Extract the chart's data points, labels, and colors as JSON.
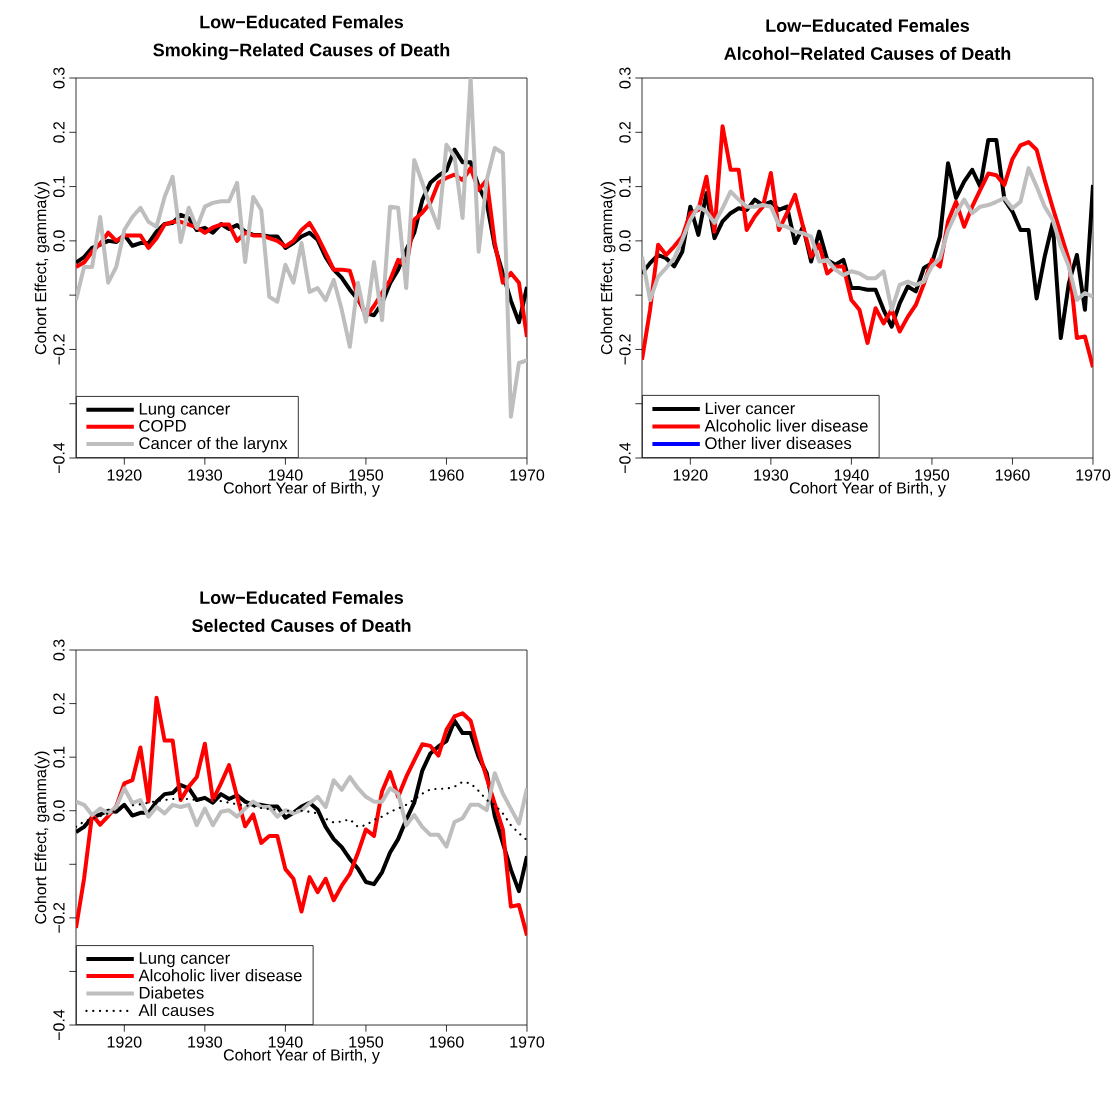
{
  "chart_data": [
    {
      "type": "line",
      "title": "Low−Educated Females",
      "subtitle": "Smoking−Related Causes of Death",
      "xlabel": "Cohort Year of Birth, y",
      "ylabel": "Cohort Effect, gamma(y)",
      "x": [
        1914,
        1915,
        1916,
        1917,
        1918,
        1919,
        1920,
        1921,
        1922,
        1923,
        1924,
        1925,
        1926,
        1927,
        1928,
        1929,
        1930,
        1931,
        1932,
        1933,
        1934,
        1935,
        1936,
        1937,
        1938,
        1939,
        1940,
        1941,
        1942,
        1943,
        1944,
        1945,
        1946,
        1947,
        1948,
        1949,
        1950,
        1951,
        1952,
        1953,
        1954,
        1955,
        1956,
        1957,
        1958,
        1959,
        1960,
        1961,
        1962,
        1963,
        1964,
        1965,
        1966,
        1967,
        1968,
        1969,
        1970
      ],
      "xlim": [
        1914,
        1970
      ],
      "xticks": [
        1920,
        1930,
        1940,
        1950,
        1960,
        1970
      ],
      "ylim": [
        -0.4,
        0.3
      ],
      "yticks": [
        {
          "value": -0.4,
          "label": "−0.4"
        },
        {
          "value": -0.3,
          "label": null
        },
        {
          "value": -0.2,
          "label": "−0.2"
        },
        {
          "value": -0.1,
          "label": null
        },
        {
          "value": 0,
          "label": "0.0"
        },
        0.1,
        0.2,
        0.3
      ],
      "legend": "bottom left",
      "series": [
        {
          "name": "Lung cancer",
          "color": "#000000",
          "values": [
            -0.04,
            -0.03,
            -0.013,
            -0.007,
            0.0,
            -0.002,
            0.011,
            -0.009,
            -0.004,
            -0.004,
            0.017,
            0.031,
            0.033,
            0.048,
            0.042,
            0.02,
            0.024,
            0.015,
            0.031,
            0.022,
            0.029,
            0.017,
            0.011,
            0.011,
            0.008,
            0.008,
            -0.013,
            -0.004,
            0.008,
            0.015,
            0.002,
            -0.03,
            -0.053,
            -0.068,
            -0.09,
            -0.108,
            -0.133,
            -0.137,
            -0.115,
            -0.078,
            -0.053,
            -0.017,
            0.015,
            0.075,
            0.107,
            0.12,
            0.13,
            0.168,
            0.145,
            0.145,
            0.1,
            0.07,
            -0.01,
            -0.06,
            -0.11,
            -0.15,
            -0.085
          ]
        },
        {
          "name": "COPD",
          "color": "#ff0000",
          "values": [
            -0.048,
            -0.04,
            -0.02,
            -0.005,
            0.015,
            0.0,
            0.01,
            0.01,
            0.01,
            -0.013,
            0.005,
            0.03,
            0.035,
            0.035,
            0.03,
            0.025,
            0.015,
            0.025,
            0.03,
            0.03,
            0.0,
            0.015,
            0.01,
            0.01,
            0.005,
            0.0,
            -0.01,
            0.0,
            0.02,
            0.033,
            0.008,
            -0.022,
            -0.053,
            -0.053,
            -0.055,
            -0.103,
            -0.14,
            -0.12,
            -0.096,
            -0.072,
            -0.035,
            -0.048,
            0.039,
            0.052,
            0.07,
            0.107,
            0.116,
            0.122,
            0.112,
            0.134,
            0.094,
            0.112,
            -0.004,
            -0.077,
            -0.059,
            -0.077,
            -0.177
          ]
        },
        {
          "name": "Cancer of the larynx",
          "color": "#bebebe",
          "values": [
            -0.109,
            -0.048,
            -0.048,
            0.044,
            -0.077,
            -0.048,
            0.02,
            0.044,
            0.061,
            0.035,
            0.026,
            0.081,
            0.118,
            -0.002,
            0.061,
            0.024,
            0.063,
            0.07,
            0.073,
            0.073,
            0.107,
            -0.039,
            0.081,
            0.057,
            -0.103,
            -0.112,
            -0.044,
            -0.077,
            -0.004,
            -0.094,
            -0.087,
            -0.109,
            -0.072,
            -0.127,
            -0.195,
            -0.077,
            -0.149,
            -0.039,
            -0.146,
            0.063,
            0.061,
            -0.087,
            0.149,
            0.107,
            0.063,
            0.024,
            0.177,
            0.155,
            0.042,
            0.3,
            -0.02,
            0.112,
            0.171,
            0.162,
            -0.324,
            -0.225,
            -0.22
          ]
        }
      ]
    },
    {
      "type": "line",
      "title": "Low−Educated Females",
      "subtitle": "Alcohol−Related Causes of Death",
      "xlabel": "Cohort Year of Birth, y",
      "ylabel": "Cohort Effect, gamma(y)",
      "x": [
        1914,
        1915,
        1916,
        1917,
        1918,
        1919,
        1920,
        1921,
        1922,
        1923,
        1924,
        1925,
        1926,
        1927,
        1928,
        1929,
        1930,
        1931,
        1932,
        1933,
        1934,
        1935,
        1936,
        1937,
        1938,
        1939,
        1940,
        1941,
        1942,
        1943,
        1944,
        1945,
        1946,
        1947,
        1948,
        1949,
        1950,
        1951,
        1952,
        1953,
        1954,
        1955,
        1956,
        1957,
        1958,
        1959,
        1960,
        1961,
        1962,
        1963,
        1964,
        1965,
        1966,
        1967,
        1968,
        1969,
        1970
      ],
      "xlim": [
        1914,
        1970
      ],
      "xticks": [
        1920,
        1930,
        1940,
        1950,
        1960,
        1970
      ],
      "ylim": [
        -0.4,
        0.3
      ],
      "yticks": [
        {
          "value": -0.4,
          "label": "−0.4"
        },
        {
          "value": -0.3,
          "label": null
        },
        {
          "value": -0.2,
          "label": "−0.2"
        },
        {
          "value": -0.1,
          "label": null
        },
        {
          "value": 0,
          "label": "0.0"
        },
        0.1,
        0.2,
        0.3
      ],
      "legend": "bottom left",
      "series": [
        {
          "name": "Liver cancer",
          "color": "#000000",
          "values": [
            -0.06,
            -0.041,
            -0.026,
            -0.032,
            -0.047,
            -0.02,
            0.063,
            0.011,
            0.088,
            0.005,
            0.036,
            0.051,
            0.06,
            0.057,
            0.076,
            0.066,
            0.072,
            0.057,
            0.063,
            -0.004,
            0.026,
            -0.038,
            0.017,
            -0.035,
            -0.044,
            -0.035,
            -0.087,
            -0.087,
            -0.09,
            -0.09,
            -0.127,
            -0.158,
            -0.115,
            -0.084,
            -0.093,
            -0.05,
            -0.041,
            0.008,
            0.143,
            0.079,
            0.109,
            0.131,
            0.1,
            0.186,
            0.186,
            0.076,
            0.054,
            0.02,
            0.02,
            -0.106,
            -0.029,
            0.033,
            -0.179,
            -0.078,
            -0.026,
            -0.127,
            0.103
          ]
        },
        {
          "name": "Alcoholic liver disease",
          "color": "#ff0000",
          "values": [
            -0.219,
            -0.127,
            -0.007,
            -0.026,
            -0.01,
            0.008,
            0.051,
            0.057,
            0.118,
            0.017,
            0.211,
            0.131,
            0.131,
            0.02,
            0.045,
            0.063,
            0.125,
            0.02,
            0.051,
            0.085,
            0.026,
            -0.029,
            -0.007,
            -0.06,
            -0.047,
            -0.047,
            -0.109,
            -0.127,
            -0.188,
            -0.124,
            -0.152,
            -0.127,
            -0.167,
            -0.14,
            -0.118,
            -0.079,
            -0.035,
            -0.047,
            0.036,
            0.072,
            0.026,
            0.063,
            0.094,
            0.124,
            0.121,
            0.103,
            0.151,
            0.176,
            0.182,
            0.168,
            0.112,
            0.061,
            0.013,
            -0.035,
            -0.179,
            -0.176,
            -0.233
          ]
        },
        {
          "color": "#bebebe",
          "values": [
            -0.029,
            -0.109,
            -0.066,
            -0.05,
            -0.032,
            0.002,
            0.039,
            0.063,
            0.054,
            0.033,
            0.06,
            0.091,
            0.076,
            0.063,
            0.063,
            0.066,
            0.063,
            0.029,
            0.026,
            0.017,
            0.014,
            0.008,
            -0.038,
            -0.035,
            -0.053,
            -0.063,
            -0.056,
            -0.06,
            -0.069,
            -0.069,
            -0.056,
            -0.127,
            -0.081,
            -0.075,
            -0.081,
            -0.075,
            -0.047,
            -0.032,
            0.02,
            0.051,
            0.076,
            0.051,
            0.063,
            0.066,
            0.072,
            0.079,
            0.06,
            0.072,
            0.134,
            0.1,
            0.063,
            0.039,
            -0.01,
            -0.047,
            -0.109,
            -0.096,
            -0.103
          ]
        },
        {
          "name": "Other liver diseases",
          "color": "#0000ff",
          "values": [
            null,
            null,
            null,
            null,
            null,
            null,
            null,
            null,
            null,
            null,
            null,
            null,
            null,
            null,
            null,
            null,
            null,
            null,
            null,
            null,
            null,
            null,
            null,
            null,
            null,
            null,
            null,
            null,
            null,
            null,
            null,
            null,
            null,
            null,
            null,
            null,
            null,
            null,
            null,
            null,
            null,
            null,
            null,
            null,
            null,
            null,
            null,
            null,
            null,
            null,
            null,
            null,
            null,
            null,
            null,
            null,
            null
          ]
        }
      ]
    },
    {
      "type": "line",
      "title": "Low−Educated Females",
      "subtitle": "Selected Causes of Death",
      "xlabel": "Cohort Year of Birth, y",
      "ylabel": "Cohort Effect, gamma(y)",
      "x": [
        1914,
        1915,
        1916,
        1917,
        1918,
        1919,
        1920,
        1921,
        1922,
        1923,
        1924,
        1925,
        1926,
        1927,
        1928,
        1929,
        1930,
        1931,
        1932,
        1933,
        1934,
        1935,
        1936,
        1937,
        1938,
        1939,
        1940,
        1941,
        1942,
        1943,
        1944,
        1945,
        1946,
        1947,
        1948,
        1949,
        1950,
        1951,
        1952,
        1953,
        1954,
        1955,
        1956,
        1957,
        1958,
        1959,
        1960,
        1961,
        1962,
        1963,
        1964,
        1965,
        1966,
        1967,
        1968,
        1969,
        1970
      ],
      "xlim": [
        1914,
        1970
      ],
      "xticks": [
        1920,
        1930,
        1940,
        1950,
        1960,
        1970
      ],
      "ylim": [
        -0.4,
        0.3
      ],
      "yticks": [
        {
          "value": -0.4,
          "label": "−0.4"
        },
        {
          "value": -0.3,
          "label": null
        },
        {
          "value": -0.2,
          "label": "−0.2"
        },
        {
          "value": -0.1,
          "label": null
        },
        {
          "value": 0,
          "label": "0.0"
        },
        0.1,
        0.2,
        0.3
      ],
      "legend": "bottom left",
      "series": [
        {
          "name": "Lung cancer",
          "color": "#000000",
          "values": [
            -0.04,
            -0.03,
            -0.013,
            -0.007,
            0.0,
            -0.002,
            0.011,
            -0.009,
            -0.004,
            -0.004,
            0.017,
            0.031,
            0.033,
            0.048,
            0.042,
            0.02,
            0.024,
            0.015,
            0.031,
            0.022,
            0.029,
            0.017,
            0.011,
            0.011,
            0.008,
            0.008,
            -0.013,
            -0.004,
            0.008,
            0.015,
            0.002,
            -0.03,
            -0.053,
            -0.068,
            -0.09,
            -0.108,
            -0.133,
            -0.137,
            -0.115,
            -0.078,
            -0.053,
            -0.017,
            0.015,
            0.075,
            0.107,
            0.12,
            0.13,
            0.168,
            0.145,
            0.145,
            0.1,
            0.07,
            -0.01,
            -0.06,
            -0.11,
            -0.15,
            -0.085
          ]
        },
        {
          "name": "Alcoholic liver disease",
          "color": "#ff0000",
          "values": [
            -0.219,
            -0.127,
            -0.007,
            -0.026,
            -0.01,
            0.008,
            0.051,
            0.057,
            0.118,
            0.017,
            0.211,
            0.131,
            0.131,
            0.02,
            0.045,
            0.063,
            0.125,
            0.02,
            0.051,
            0.085,
            0.026,
            -0.029,
            -0.007,
            -0.06,
            -0.047,
            -0.047,
            -0.109,
            -0.127,
            -0.188,
            -0.124,
            -0.152,
            -0.127,
            -0.167,
            -0.14,
            -0.118,
            -0.079,
            -0.035,
            -0.047,
            0.036,
            0.072,
            0.026,
            0.063,
            0.094,
            0.124,
            0.121,
            0.103,
            0.151,
            0.176,
            0.182,
            0.168,
            0.112,
            0.061,
            0.013,
            -0.035,
            -0.179,
            -0.176,
            -0.233
          ]
        },
        {
          "name": "Diabetes",
          "color": "#bebebe",
          "values": [
            0.017,
            0.011,
            -0.008,
            0.004,
            -0.005,
            0.007,
            0.042,
            0.014,
            0.02,
            -0.011,
            0.007,
            -0.005,
            0.011,
            0.007,
            0.011,
            -0.027,
            0.004,
            -0.027,
            -0.002,
            0.001,
            -0.011,
            0.004,
            0.017,
            0.007,
            0.007,
            -0.011,
            0.001,
            -0.005,
            0.001,
            0.014,
            0.026,
            0.007,
            0.057,
            0.039,
            0.063,
            0.042,
            0.026,
            0.017,
            0.017,
            0.042,
            0.032,
            -0.027,
            -0.008,
            -0.03,
            -0.045,
            -0.045,
            -0.067,
            -0.021,
            -0.014,
            0.011,
            0.011,
            0.001,
            0.07,
            0.032,
            0.004,
            -0.024,
            0.042
          ]
        },
        {
          "name": "All causes",
          "color": "#000000",
          "line_style": "dotted",
          "values": [
            -0.03,
            -0.02,
            -0.015,
            -0.01,
            -0.005,
            0.0,
            0.005,
            0.01,
            0.012,
            0.015,
            0.018,
            0.02,
            0.022,
            0.022,
            0.022,
            0.02,
            0.02,
            0.02,
            0.018,
            0.015,
            0.012,
            0.01,
            0.008,
            0.005,
            0.003,
            0.002,
            0.0,
            0.0,
            0.0,
            -0.002,
            -0.005,
            -0.015,
            -0.022,
            -0.02,
            -0.016,
            -0.03,
            -0.027,
            -0.017,
            -0.011,
            -0.002,
            0.004,
            0.011,
            0.021,
            0.032,
            0.04,
            0.041,
            0.041,
            0.045,
            0.054,
            0.051,
            0.037,
            0.02,
            0.011,
            -0.005,
            -0.027,
            -0.042,
            -0.055
          ]
        }
      ]
    }
  ]
}
